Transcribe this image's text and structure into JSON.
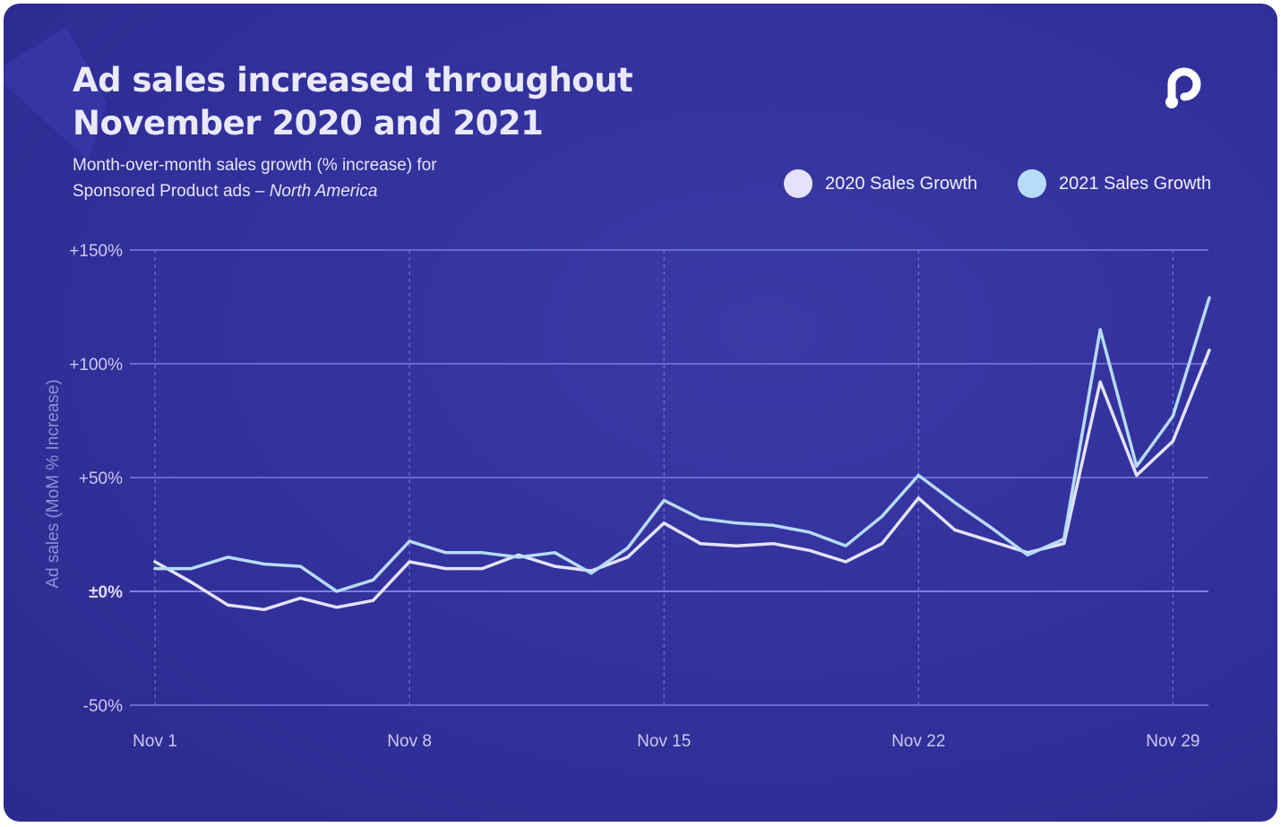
{
  "title": "Ad sales increased throughout November 2020 and 2021",
  "subtitle_line1": "Month-over-month sales growth (% increase) for",
  "subtitle_line2_prefix": "Sponsored Product ads – ",
  "subtitle_line2_region": "North America",
  "logo_icon": "pacvue-logo-icon",
  "colors": {
    "background": "#32309a",
    "series_2020": "#e4e3fb",
    "series_2021": "#b6dcf9",
    "gridline": "#7a7fe0"
  },
  "chart_data": {
    "type": "line",
    "title": "Ad sales increased throughout November 2020 and 2021",
    "ylabel": "Ad sales (MoM % Increase)",
    "xlabel": "",
    "ylim": [
      -50,
      150
    ],
    "xlim": [
      1,
      30
    ],
    "yticks": [
      -50,
      0,
      50,
      100,
      150
    ],
    "ytick_labels": [
      "-50%",
      "±0%",
      "+50%",
      "+100%",
      "+150%"
    ],
    "xticks": [
      1,
      8,
      15,
      22,
      29
    ],
    "xtick_labels": [
      "Nov 1",
      "Nov 8",
      "Nov 15",
      "Nov 22",
      "Nov 29"
    ],
    "grid": "horizontal solid, vertical dashed at x ticks",
    "legend_position": "top-right",
    "x": [
      1,
      2,
      3,
      4,
      5,
      6,
      7,
      8,
      9,
      10,
      11,
      12,
      13,
      14,
      15,
      16,
      17,
      18,
      19,
      20,
      21,
      22,
      23,
      24,
      25,
      26,
      27,
      28,
      29,
      30
    ],
    "series": [
      {
        "name": "2020 Sales Growth",
        "color": "#e4e3fb",
        "values": [
          13,
          4,
          -6,
          -8,
          -3,
          -7,
          -4,
          13,
          10,
          10,
          16,
          11,
          9,
          15,
          30,
          21,
          20,
          21,
          18,
          13,
          21,
          41,
          27,
          22,
          17,
          21,
          92,
          51,
          66,
          106
        ]
      },
      {
        "name": "2021 Sales Growth",
        "color": "#b6dcf9",
        "values": [
          10,
          10,
          15,
          12,
          11,
          0,
          5,
          22,
          17,
          17,
          15,
          17,
          8,
          19,
          40,
          32,
          30,
          29,
          26,
          20,
          33,
          51,
          39,
          28,
          16,
          23,
          115,
          55,
          77,
          129
        ]
      }
    ]
  }
}
